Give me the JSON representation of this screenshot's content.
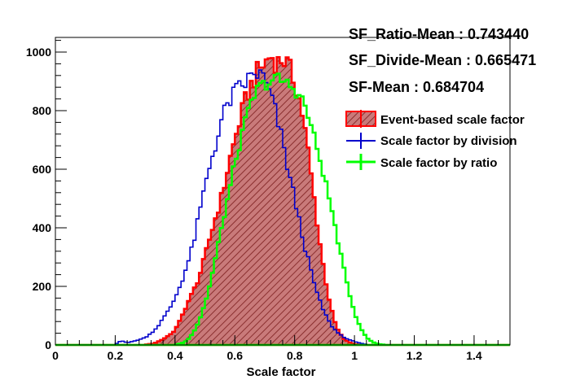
{
  "chart_data": {
    "type": "histogram",
    "xlabel": "Scale factor",
    "ylabel": "",
    "xlim": [
      0,
      1.52
    ],
    "ylim": [
      0,
      1050
    ],
    "bin_width": 0.01,
    "x_ticks": [
      0,
      0.2,
      0.4,
      0.6,
      0.8,
      1,
      1.2,
      1.4
    ],
    "x_tick_labels": [
      "0",
      "0.2",
      "0.4",
      "0.6",
      "0.8",
      "1",
      "1.2",
      "1.4"
    ],
    "y_ticks": [
      0,
      200,
      400,
      600,
      800,
      1000
    ],
    "y_tick_labels": [
      "0",
      "200",
      "400",
      "600",
      "800",
      "1000"
    ],
    "grid": false,
    "annotations": [
      "SF_Ratio-Mean : 0.743440",
      "SF_Divide-Mean : 0.665471",
      "SF-Mean : 0.684704"
    ],
    "legend_position": "right",
    "series": [
      {
        "name": "Event-based scale factor",
        "style": "filled-hatched",
        "color": "#ff0000",
        "fill": "#b05050",
        "points": [
          [
            0.3,
            1
          ],
          [
            0.33,
            5
          ],
          [
            0.35,
            15
          ],
          [
            0.37,
            25
          ],
          [
            0.4,
            50
          ],
          [
            0.42,
            90
          ],
          [
            0.44,
            140
          ],
          [
            0.46,
            180
          ],
          [
            0.48,
            230
          ],
          [
            0.5,
            300
          ],
          [
            0.52,
            380
          ],
          [
            0.54,
            450
          ],
          [
            0.56,
            520
          ],
          [
            0.58,
            620
          ],
          [
            0.6,
            700
          ],
          [
            0.62,
            780
          ],
          [
            0.64,
            850
          ],
          [
            0.66,
            900
          ],
          [
            0.68,
            940
          ],
          [
            0.7,
            960
          ],
          [
            0.72,
            990
          ],
          [
            0.74,
            960
          ],
          [
            0.76,
            980
          ],
          [
            0.78,
            950
          ],
          [
            0.8,
            900
          ],
          [
            0.82,
            820
          ],
          [
            0.84,
            700
          ],
          [
            0.86,
            540
          ],
          [
            0.88,
            380
          ],
          [
            0.9,
            240
          ],
          [
            0.92,
            130
          ],
          [
            0.94,
            60
          ],
          [
            0.96,
            25
          ],
          [
            0.98,
            10
          ],
          [
            1.0,
            3
          ],
          [
            1.02,
            1
          ]
        ]
      },
      {
        "name": "Scale factor by division",
        "style": "line",
        "color": "#0000cc",
        "points": [
          [
            0.2,
            2
          ],
          [
            0.22,
            15
          ],
          [
            0.24,
            8
          ],
          [
            0.26,
            12
          ],
          [
            0.28,
            18
          ],
          [
            0.3,
            25
          ],
          [
            0.32,
            40
          ],
          [
            0.34,
            60
          ],
          [
            0.36,
            90
          ],
          [
            0.38,
            120
          ],
          [
            0.4,
            160
          ],
          [
            0.42,
            210
          ],
          [
            0.44,
            270
          ],
          [
            0.46,
            340
          ],
          [
            0.48,
            440
          ],
          [
            0.5,
            540
          ],
          [
            0.52,
            630
          ],
          [
            0.54,
            700
          ],
          [
            0.56,
            780
          ],
          [
            0.58,
            830
          ],
          [
            0.6,
            860
          ],
          [
            0.62,
            880
          ],
          [
            0.64,
            900
          ],
          [
            0.66,
            920
          ],
          [
            0.68,
            930
          ],
          [
            0.7,
            900
          ],
          [
            0.72,
            850
          ],
          [
            0.74,
            780
          ],
          [
            0.76,
            690
          ],
          [
            0.78,
            590
          ],
          [
            0.8,
            500
          ],
          [
            0.82,
            400
          ],
          [
            0.84,
            310
          ],
          [
            0.86,
            230
          ],
          [
            0.88,
            160
          ],
          [
            0.9,
            110
          ],
          [
            0.92,
            70
          ],
          [
            0.94,
            45
          ],
          [
            0.96,
            30
          ],
          [
            0.98,
            18
          ],
          [
            1.0,
            12
          ],
          [
            1.02,
            6
          ],
          [
            1.04,
            2
          ]
        ]
      },
      {
        "name": "Scale factor by ratio",
        "style": "line-with-errorbars",
        "color": "#00ff00",
        "points": [
          [
            0.4,
            1
          ],
          [
            0.42,
            5
          ],
          [
            0.44,
            15
          ],
          [
            0.46,
            40
          ],
          [
            0.48,
            80
          ],
          [
            0.5,
            140
          ],
          [
            0.52,
            220
          ],
          [
            0.54,
            320
          ],
          [
            0.56,
            420
          ],
          [
            0.58,
            520
          ],
          [
            0.6,
            620
          ],
          [
            0.62,
            700
          ],
          [
            0.64,
            780
          ],
          [
            0.66,
            840
          ],
          [
            0.68,
            880
          ],
          [
            0.7,
            890
          ],
          [
            0.72,
            900
          ],
          [
            0.74,
            910
          ],
          [
            0.76,
            900
          ],
          [
            0.78,
            890
          ],
          [
            0.8,
            870
          ],
          [
            0.82,
            850
          ],
          [
            0.84,
            800
          ],
          [
            0.86,
            730
          ],
          [
            0.88,
            650
          ],
          [
            0.9,
            570
          ],
          [
            0.92,
            480
          ],
          [
            0.94,
            380
          ],
          [
            0.96,
            280
          ],
          [
            0.98,
            190
          ],
          [
            1.0,
            110
          ],
          [
            1.02,
            60
          ],
          [
            1.04,
            25
          ],
          [
            1.06,
            10
          ],
          [
            1.08,
            3
          ],
          [
            1.1,
            1
          ]
        ]
      }
    ]
  }
}
